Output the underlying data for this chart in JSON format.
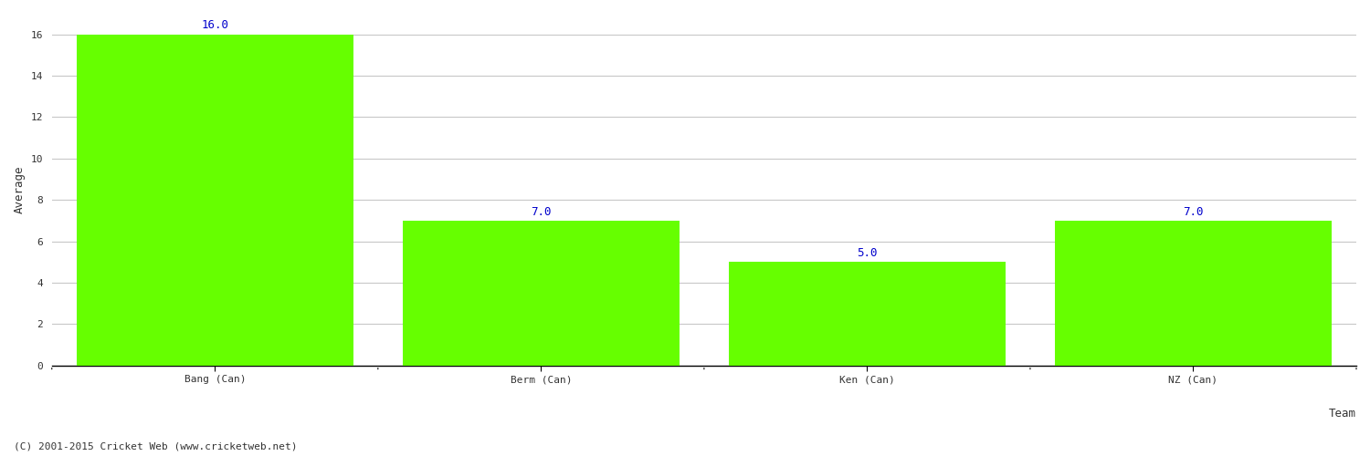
{
  "categories": [
    "Bang (Can)",
    "Berm (Can)",
    "Ken (Can)",
    "NZ (Can)"
  ],
  "values": [
    16.0,
    7.0,
    5.0,
    7.0
  ],
  "bar_color": "#66ff00",
  "bar_edge_color": "#66ff00",
  "xlabel": "Team",
  "ylabel": "Average",
  "ylim": [
    0,
    17
  ],
  "yticks": [
    0,
    2,
    4,
    6,
    8,
    10,
    12,
    14,
    16
  ],
  "label_color": "#0000cc",
  "label_fontsize": 9,
  "axis_label_fontsize": 9,
  "tick_fontsize": 8,
  "background_color": "#ffffff",
  "grid_color": "#c8c8c8",
  "copyright_text": "(C) 2001-2015 Cricket Web (www.cricketweb.net)",
  "copyright_fontsize": 8,
  "copyright_color": "#333333"
}
